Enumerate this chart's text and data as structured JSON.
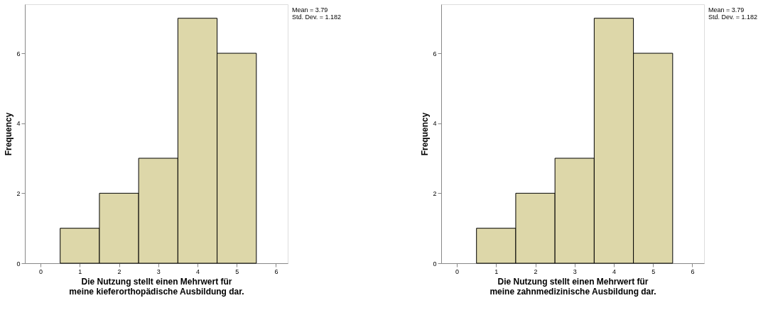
{
  "chart_data": [
    {
      "type": "histogram",
      "xlabel": "Die Nutzung stellt einen Mehrwert für\nmeine kieferorthopädische Ausbildung dar.",
      "ylabel": "Frequency",
      "bins": [
        0.5,
        1.5,
        2.5,
        3.5,
        4.5,
        5.5
      ],
      "values": [
        1,
        2,
        3,
        7,
        6
      ],
      "color": "#ddd7a9",
      "xlim": [
        -0.4,
        6.3
      ],
      "xticks": [
        0,
        1,
        2,
        3,
        4,
        5,
        6
      ],
      "ylim": [
        0,
        7.4
      ],
      "yticks": [
        0,
        2,
        4,
        6
      ],
      "grid": false,
      "annotations": [
        "Mean = 3.79",
        "Std. Dev. = 1.182"
      ]
    },
    {
      "type": "histogram",
      "xlabel": "Die Nutzung stellt einen Mehrwert für\nmeine zahnmedizinische Ausbildung dar.",
      "ylabel": "Frequency",
      "bins": [
        0.5,
        1.5,
        2.5,
        3.5,
        4.5,
        5.5
      ],
      "values": [
        1,
        2,
        3,
        7,
        6
      ],
      "color": "#ddd7a9",
      "xlim": [
        -0.4,
        6.3
      ],
      "xticks": [
        0,
        1,
        2,
        3,
        4,
        5,
        6
      ],
      "ylim": [
        0,
        7.4
      ],
      "yticks": [
        0,
        2,
        4,
        6
      ],
      "grid": false,
      "annotations": [
        "Mean = 3.79",
        "Std. Dev. = 1.182"
      ]
    }
  ]
}
